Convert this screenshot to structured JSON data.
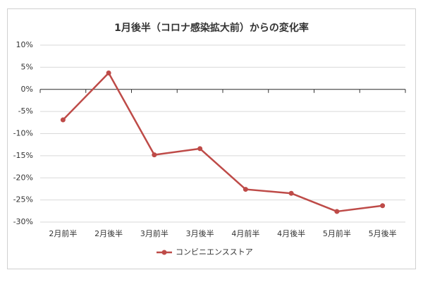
{
  "chart_data": {
    "type": "line",
    "title": "1月後半（コロナ感染拡大前）からの変化率",
    "categories": [
      "2月前半",
      "2月後半",
      "3月前半",
      "3月後半",
      "4月前半",
      "4月後半",
      "5月前半",
      "5月後半"
    ],
    "series": [
      {
        "name": "コンビニエンスストア",
        "color": "#be4b48",
        "values": [
          -6.9,
          3.7,
          -14.8,
          -13.4,
          -22.6,
          -23.5,
          -27.6,
          -26.3
        ]
      }
    ],
    "ylim": [
      -30,
      10
    ],
    "yticks": [
      {
        "value": -30,
        "label": "-30%"
      },
      {
        "value": -25,
        "label": "-25%"
      },
      {
        "value": -20,
        "label": "-20%"
      },
      {
        "value": -15,
        "label": "-15%"
      },
      {
        "value": -10,
        "label": "-10%"
      },
      {
        "value": -5,
        "label": "-5%"
      },
      {
        "value": 0,
        "label": "0%"
      },
      {
        "value": 5,
        "label": "5%"
      },
      {
        "value": 10,
        "label": "10%"
      }
    ],
    "grid": true,
    "legend": "bottom"
  }
}
